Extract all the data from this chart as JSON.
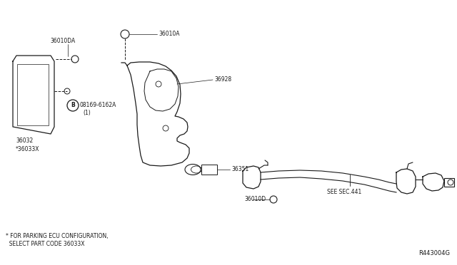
{
  "bg_color": "#ffffff",
  "fig_width": 6.4,
  "fig_height": 3.72,
  "dpi": 100,
  "footnote_line1": "* FOR PARKING ECU CONFIGURATION,",
  "footnote_line2": "  SELECT PART CODE 36033X",
  "ref_code": "R443004G",
  "text_color": "#1a1a1a",
  "line_color": "#1a1a1a",
  "font_size": 6.0,
  "small_font_size": 5.5
}
